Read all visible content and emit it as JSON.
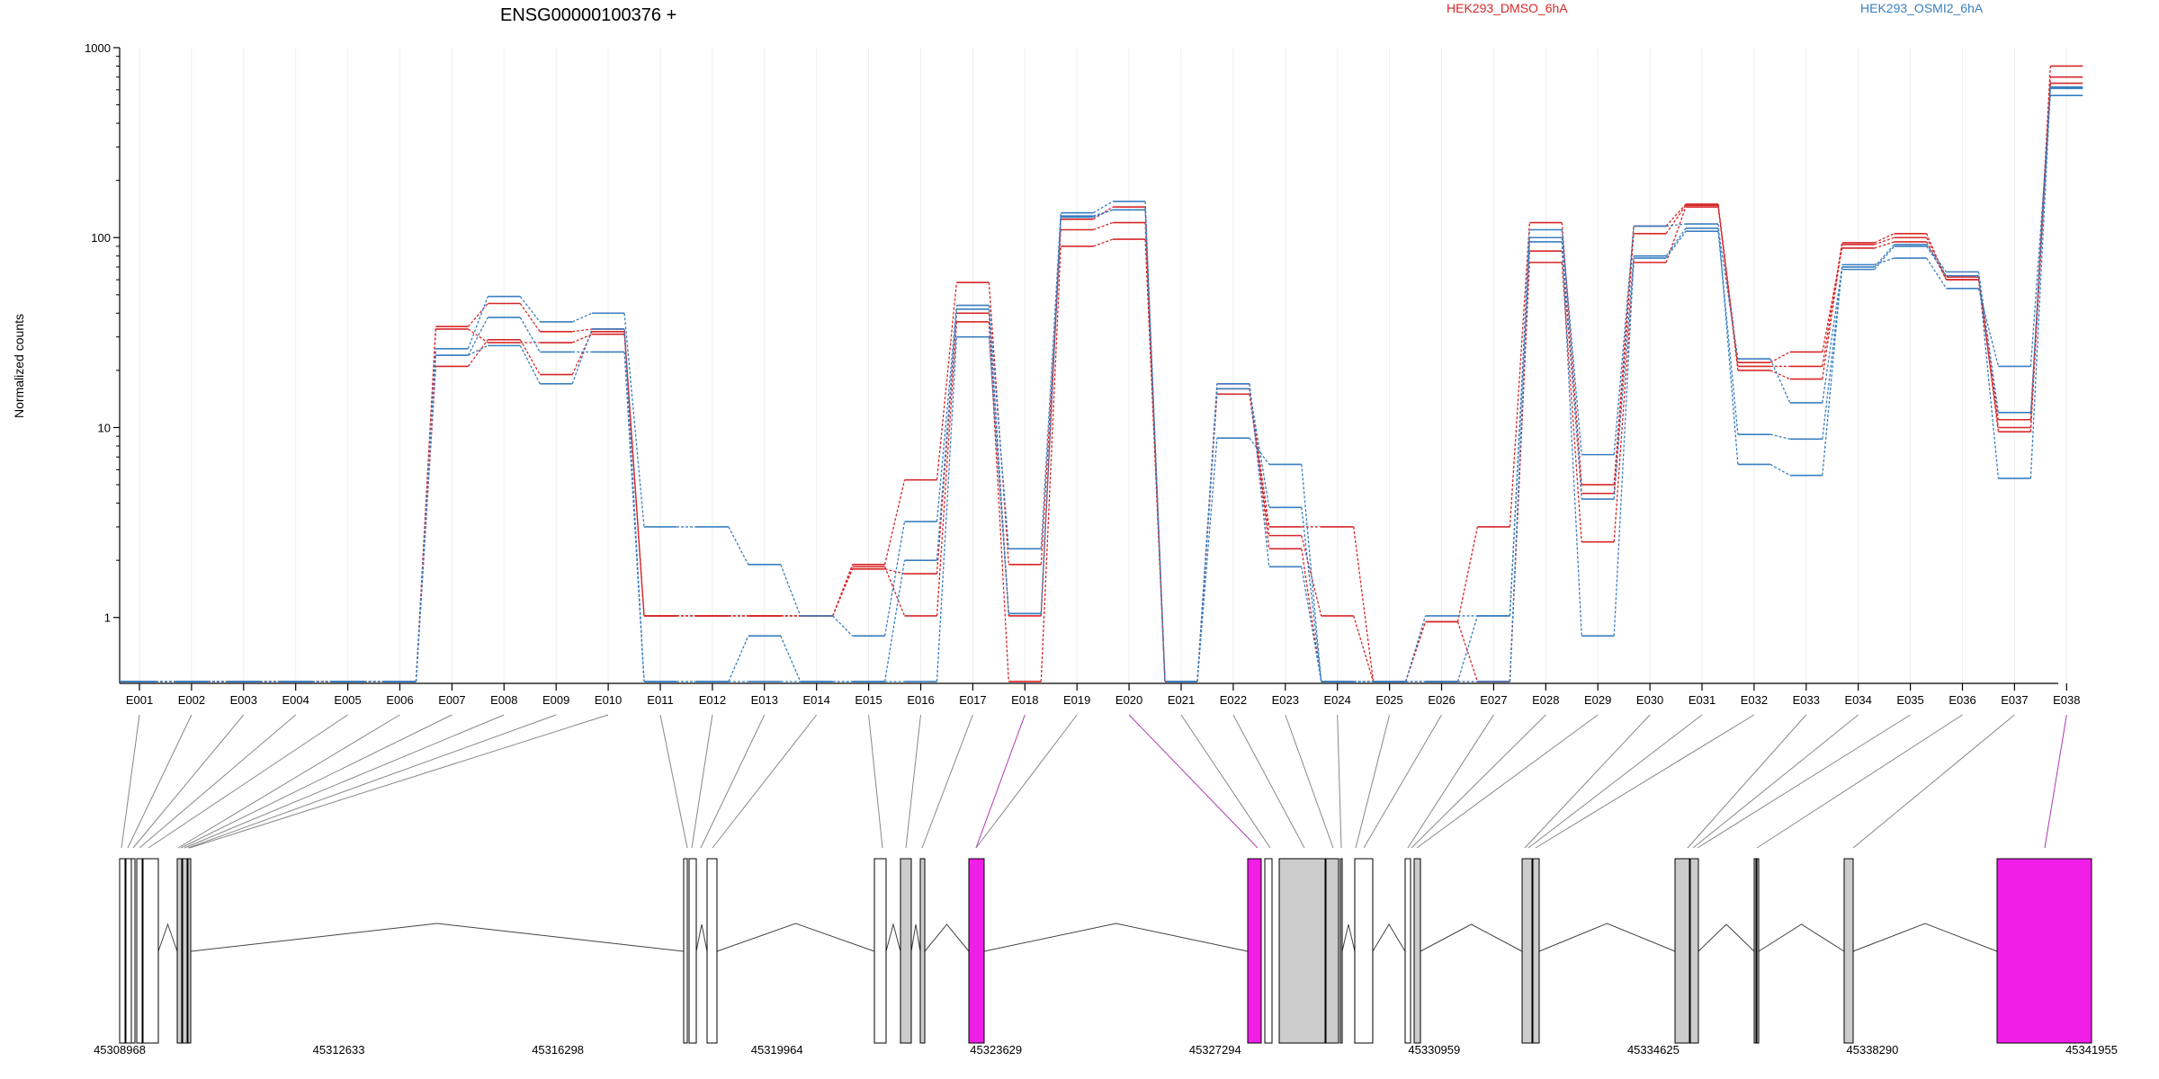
{
  "chart_data": {
    "type": "line",
    "title": "ENSG00000100376 +",
    "ylabel": "Normalized counts",
    "yscale": "log",
    "ylim": [
      0.45,
      1000
    ],
    "yticks": [
      1,
      10,
      100,
      1000
    ],
    "ytick_labels": [
      "1",
      "10",
      "100",
      "1000"
    ],
    "x": [
      "E001",
      "E002",
      "E003",
      "E004",
      "E005",
      "E006",
      "E007",
      "E008",
      "E009",
      "E010",
      "E011",
      "E012",
      "E013",
      "E014",
      "E015",
      "E016",
      "E017",
      "E018",
      "E019",
      "E020",
      "E021",
      "E022",
      "E023",
      "E024",
      "E025",
      "E026",
      "E027",
      "E028",
      "E029",
      "E030",
      "E031",
      "E032",
      "E033",
      "E034",
      "E035",
      "E036",
      "E037",
      "E038"
    ],
    "highlighted_exons": [
      "E018",
      "E020",
      "E038"
    ],
    "legend": [
      {
        "name": "HEK293_DMSO_6hA",
        "color": "#d62728",
        "position": "top-center"
      },
      {
        "name": "HEK293_OSMI2_6hA",
        "color": "#3a7fc0",
        "position": "top-right"
      }
    ],
    "series": [
      {
        "group": "HEK293_DMSO_6hA",
        "color": "#d62728",
        "values": [
          0.46,
          0.46,
          0.46,
          0.46,
          0.46,
          0.46,
          34,
          45,
          32,
          33,
          1.02,
          1.02,
          1.02,
          1.02,
          1.9,
          5.3,
          58,
          1.9,
          110,
          120,
          0.46,
          16,
          3.0,
          3.0,
          0.46,
          0.95,
          3.0,
          120,
          5.0,
          115,
          150,
          21,
          21,
          94,
          105,
          60,
          10,
          800
        ]
      },
      {
        "group": "HEK293_DMSO_6hA",
        "color": "#d62728",
        "values": [
          0.46,
          0.46,
          0.46,
          0.46,
          0.46,
          0.46,
          21,
          29,
          19,
          32,
          1.02,
          1.02,
          1.02,
          1.02,
          1.85,
          1.02,
          36,
          0.46,
          90,
          98,
          0.46,
          15,
          2.7,
          1.02,
          0.46,
          0.95,
          0.46,
          74,
          2.5,
          74,
          145,
          20,
          18,
          92,
          100,
          62,
          9.5,
          650
        ]
      },
      {
        "group": "HEK293_DMSO_6hA",
        "color": "#d62728",
        "values": [
          0.46,
          0.46,
          0.46,
          0.46,
          0.46,
          0.46,
          33,
          28,
          28,
          31,
          1.02,
          1.02,
          1.02,
          1.02,
          1.8,
          1.7,
          40,
          1.02,
          125,
          145,
          0.46,
          17,
          2.3,
          0.46,
          0.46,
          0.46,
          0.46,
          85,
          4.5,
          105,
          148,
          22,
          25,
          88,
          95,
          60,
          11,
          700
        ]
      },
      {
        "group": "HEK293_OSMI2_6hA",
        "color": "#3a7fc0",
        "values": [
          0.46,
          0.46,
          0.46,
          0.46,
          0.46,
          0.46,
          26,
          49,
          36,
          40,
          3.0,
          3.0,
          1.9,
          1.02,
          0.8,
          3.2,
          44,
          2.3,
          135,
          155,
          0.46,
          8.8,
          6.4,
          0.46,
          0.46,
          1.02,
          1.02,
          110,
          7.2,
          115,
          118,
          6.4,
          5.6,
          72,
          78,
          54,
          21,
          560
        ]
      },
      {
        "group": "HEK293_OSMI2_6hA",
        "color": "#3a7fc0",
        "values": [
          0.46,
          0.46,
          0.46,
          0.46,
          0.46,
          0.46,
          24,
          38,
          25,
          25,
          0.46,
          0.46,
          0.8,
          0.46,
          0.46,
          0.46,
          30,
          1.05,
          130,
          140,
          0.46,
          16,
          3.8,
          0.46,
          0.46,
          0.46,
          1.02,
          95,
          0.8,
          78,
          108,
          9.2,
          8.7,
          68,
          90,
          63,
          5.4,
          610
        ]
      },
      {
        "group": "HEK293_OSMI2_6hA",
        "color": "#3a7fc0",
        "values": [
          0.46,
          0.46,
          0.46,
          0.46,
          0.46,
          0.46,
          24,
          27,
          17,
          33,
          0.46,
          0.46,
          0.46,
          0.46,
          0.46,
          2.0,
          42,
          1.05,
          128,
          140,
          0.46,
          17,
          1.85,
          0.46,
          0.46,
          0.46,
          0.46,
          100,
          4.2,
          80,
          112,
          23,
          13.5,
          70,
          92,
          66,
          12,
          620
        ]
      }
    ],
    "gene_model": {
      "coordinate_ticks": [
        "45308968",
        "45312633",
        "45316298",
        "45319964",
        "45323629",
        "45327294",
        "45330959",
        "45334625",
        "45338290",
        "45341955"
      ]
    }
  }
}
